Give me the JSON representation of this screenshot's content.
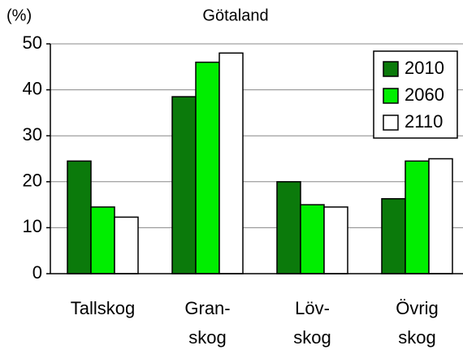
{
  "chart_data": {
    "type": "bar",
    "title": "Götaland",
    "y_label": "(%)",
    "categories": [
      "Tallskog",
      "Gran-\nskog",
      "Löv-\nskog",
      "Övrig\nskog"
    ],
    "series": [
      {
        "name": "2010",
        "color": "#0b7a0b",
        "values": [
          24.5,
          38.5,
          20,
          16.3
        ]
      },
      {
        "name": "2060",
        "color": "#00ee00",
        "values": [
          14.5,
          46,
          15,
          24.5
        ]
      },
      {
        "name": "2110",
        "color": "#ffffff",
        "values": [
          12.3,
          48,
          14.5,
          25
        ]
      }
    ],
    "ylim": [
      0,
      50
    ],
    "yticks": [
      0,
      10,
      20,
      30,
      40,
      50
    ],
    "grid": true,
    "legend": "upper right"
  }
}
